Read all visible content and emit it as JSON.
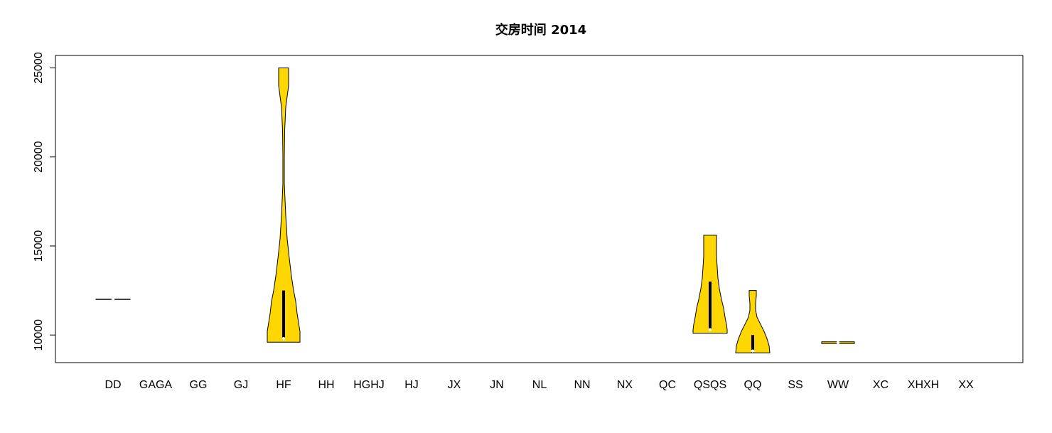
{
  "chart_data": {
    "type": "violin",
    "title": "交房时间 2014",
    "xlabel": "",
    "ylabel": "",
    "ylim": [
      8450,
      25700
    ],
    "yticks": [
      10000,
      15000,
      20000,
      25000
    ],
    "y_tick_labels": [
      "10000",
      "15000",
      "20000",
      "25000"
    ],
    "categories": [
      "DD",
      "GAGA",
      "GG",
      "GJ",
      "HF",
      "HH",
      "HGHJ",
      "HJ",
      "JX",
      "JN",
      "NL",
      "NN",
      "NX",
      "QC",
      "QSQS",
      "QQ",
      "SS",
      "WW",
      "XC",
      "XHXH",
      "XX"
    ],
    "fill_color": "#FFD700",
    "outline_color": "#000000",
    "median_color": "#FFFFFF",
    "violins": [
      {
        "category": "DD",
        "min": 12000,
        "max": 12000,
        "median": 12000,
        "q1": 12000,
        "q3": 12000,
        "profile": [
          [
            11990,
            24
          ],
          [
            12000,
            24
          ],
          [
            12010,
            24
          ]
        ]
      },
      {
        "category": "HF",
        "min": 9600,
        "max": 25000,
        "median": 9800,
        "q1": 9750,
        "q3": 12500,
        "profile": [
          [
            9600,
            23
          ],
          [
            9800,
            23
          ],
          [
            10200,
            23
          ],
          [
            10700,
            21
          ],
          [
            11200,
            19
          ],
          [
            11900,
            17
          ],
          [
            12500,
            14
          ],
          [
            13300,
            11
          ],
          [
            14300,
            8
          ],
          [
            15400,
            5
          ],
          [
            16700,
            3
          ],
          [
            18500,
            1
          ],
          [
            20000,
            1
          ],
          [
            21500,
            1.5
          ],
          [
            22800,
            3
          ],
          [
            24000,
            7
          ],
          [
            24600,
            7
          ],
          [
            25000,
            7
          ]
        ]
      },
      {
        "category": "QSQS",
        "min": 10100,
        "max": 15600,
        "median": 10300,
        "q1": 10250,
        "q3": 13000,
        "profile": [
          [
            10100,
            24
          ],
          [
            10300,
            24
          ],
          [
            10600,
            23
          ],
          [
            11000,
            21
          ],
          [
            11500,
            19
          ],
          [
            12000,
            16
          ],
          [
            12600,
            13
          ],
          [
            13200,
            11
          ],
          [
            13800,
            10
          ],
          [
            14400,
            9
          ],
          [
            15000,
            9
          ],
          [
            15600,
            9
          ]
        ]
      },
      {
        "category": "QQ",
        "min": 9000,
        "max": 12500,
        "median": 9100,
        "q1": 9000,
        "q3": 10000,
        "profile": [
          [
            9000,
            24
          ],
          [
            9400,
            23
          ],
          [
            9800,
            20
          ],
          [
            10200,
            16
          ],
          [
            10600,
            11
          ],
          [
            11000,
            6
          ],
          [
            11400,
            4
          ],
          [
            11800,
            4
          ],
          [
            12200,
            5
          ],
          [
            12500,
            5
          ]
        ]
      },
      {
        "category": "WW",
        "min": 9520,
        "max": 9620,
        "median": 9570,
        "q1": 9540,
        "q3": 9600,
        "profile": [
          [
            9520,
            23
          ],
          [
            9570,
            23
          ],
          [
            9620,
            23
          ]
        ]
      }
    ]
  }
}
